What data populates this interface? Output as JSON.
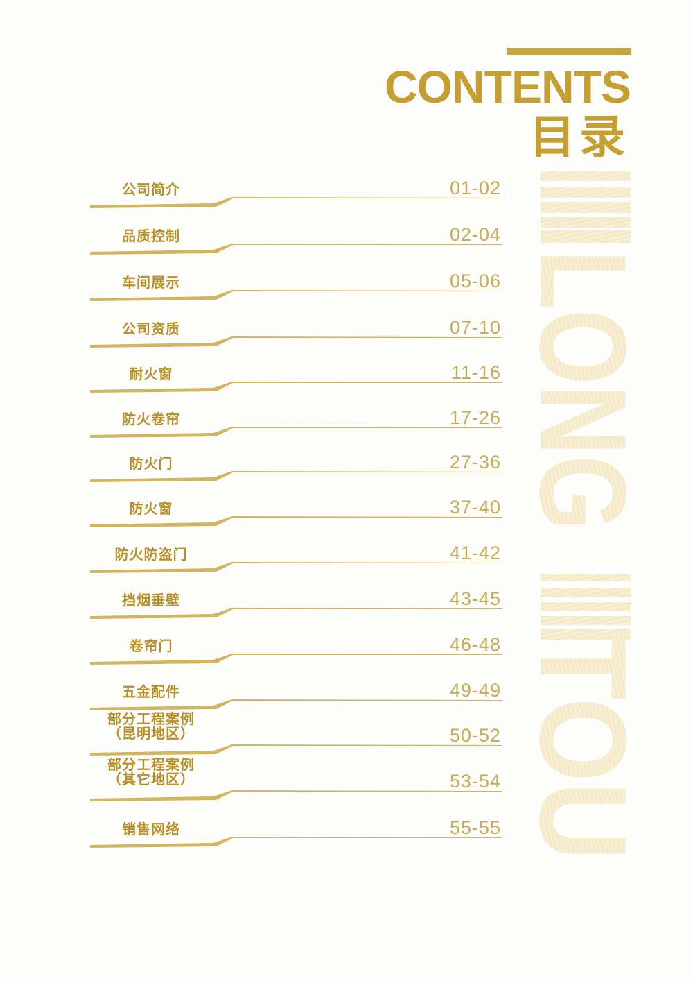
{
  "header": {
    "title_en": "CONTENTS",
    "title_cn": "目录"
  },
  "watermark": {
    "words": [
      "LONG",
      "TOU"
    ]
  },
  "colors": {
    "gold": "#c59f32",
    "label": "#b88f26",
    "pages": "#c9ac55",
    "watermark": "#f6efc6"
  },
  "toc": [
    {
      "label": [
        "公司简介"
      ],
      "pages": "01-02"
    },
    {
      "label": [
        "品质控制"
      ],
      "pages": "02-04"
    },
    {
      "label": [
        "车间展示"
      ],
      "pages": "05-06"
    },
    {
      "label": [
        "公司资质"
      ],
      "pages": "07-10"
    },
    {
      "label": [
        "耐火窗"
      ],
      "pages": "11-16"
    },
    {
      "label": [
        "防火卷帘"
      ],
      "pages": "17-26"
    },
    {
      "label": [
        "防火门"
      ],
      "pages": "27-36"
    },
    {
      "label": [
        "防火窗"
      ],
      "pages": "37-40"
    },
    {
      "label": [
        "防火防盗门"
      ],
      "pages": "41-42"
    },
    {
      "label": [
        "挡烟垂壁"
      ],
      "pages": "43-45"
    },
    {
      "label": [
        "卷帘门"
      ],
      "pages": "46-48"
    },
    {
      "label": [
        "五金配件"
      ],
      "pages": "49-49"
    },
    {
      "label": [
        "部分工程案例",
        "（昆明地区）"
      ],
      "pages": "50-52"
    },
    {
      "label": [
        "部分工程案例",
        "（其它地区）"
      ],
      "pages": "53-54"
    },
    {
      "label": [
        "销售网络"
      ],
      "pages": "55-55"
    }
  ]
}
